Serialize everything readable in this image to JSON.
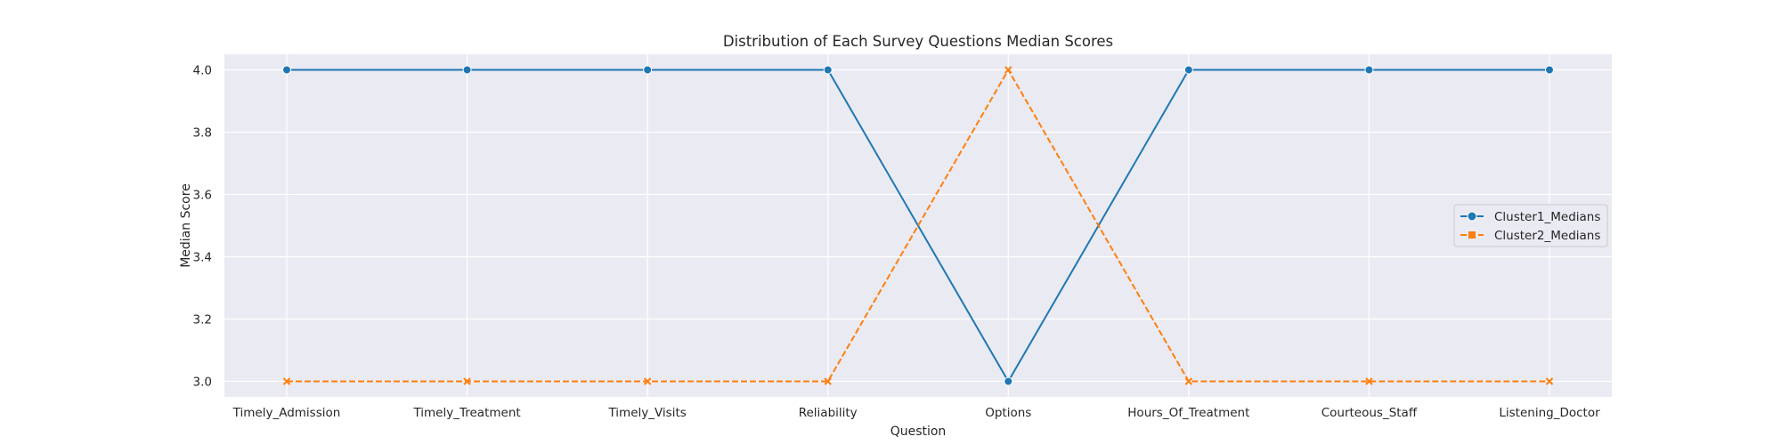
{
  "chart_data": {
    "type": "line",
    "title": "Distribution of Each Survey Questions Median Scores",
    "xlabel": "Question",
    "ylabel": "Median Score",
    "categories": [
      "Timely_Admission",
      "Timely_Treatment",
      "Timely_Visits",
      "Reliability",
      "Options",
      "Hours_Of_Treatment",
      "Courteous_Staff",
      "Listening_Doctor"
    ],
    "ylim": [
      2.95,
      4.05
    ],
    "yticks": [
      3.0,
      3.2,
      3.4,
      3.6,
      3.8,
      4.0
    ],
    "ytick_labels": [
      "3.0",
      "3.2",
      "3.4",
      "3.6",
      "3.8",
      "4.0"
    ],
    "grid": true,
    "legend_position": "center-right",
    "series": [
      {
        "name": "Cluster1_Medians",
        "values": [
          4,
          4,
          4,
          4,
          3,
          4,
          4,
          4
        ],
        "color": "#1f77b4",
        "marker": "circle",
        "line_style": "solid"
      },
      {
        "name": "Cluster2_Medians",
        "values": [
          3,
          3,
          3,
          3,
          4,
          3,
          3,
          3
        ],
        "color": "#ff7f0e",
        "marker": "x",
        "line_style": "dashed"
      }
    ]
  }
}
